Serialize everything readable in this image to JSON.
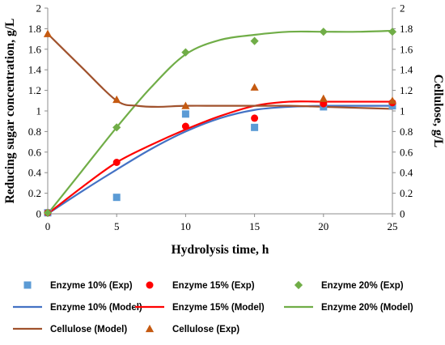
{
  "chart_data": {
    "type": "scatter",
    "xlabel": "Hydrolysis time, h",
    "ylabel_left": "Reducing sugar concentration, g/L",
    "ylabel_right": "Cellulose, g/L",
    "xlim": [
      0,
      25
    ],
    "ylim_left": [
      0,
      2
    ],
    "ylim_right": [
      0,
      2
    ],
    "x_ticks": [
      "0",
      "5",
      "10",
      "15",
      "20",
      "25"
    ],
    "y_ticks_left": [
      "0",
      "0.2",
      "0.4",
      "0.6",
      "0.8",
      "1",
      "1.2",
      "1.4",
      "1.6",
      "1.8",
      "2"
    ],
    "y_ticks_right": [
      "0",
      "0.2",
      "0.4",
      "0.6",
      "0.8",
      "1",
      "1.2",
      "1.4",
      "1.6",
      "1.8",
      "2"
    ],
    "grid": false,
    "legend_position": "bottom",
    "series": [
      {
        "name": "Enzyme 10% (Exp)",
        "kind": "points",
        "marker": "square",
        "color": "#5B9BD5",
        "axis": "left",
        "x": [
          0,
          5,
          10,
          15,
          20,
          25
        ],
        "y": [
          0.01,
          0.16,
          0.97,
          0.84,
          1.04,
          1.05
        ]
      },
      {
        "name": "Enzyme 15% (Exp)",
        "kind": "points",
        "marker": "circle",
        "color": "#FF0000",
        "axis": "left",
        "x": [
          0,
          5,
          10,
          15,
          20,
          25
        ],
        "y": [
          0.01,
          0.5,
          0.85,
          0.93,
          1.07,
          1.08
        ]
      },
      {
        "name": "Enzyme 20% (Exp)",
        "kind": "points",
        "marker": "diamond",
        "color": "#70AD47",
        "axis": "left",
        "x": [
          0,
          5,
          10,
          15,
          20,
          25
        ],
        "y": [
          0.01,
          0.84,
          1.57,
          1.68,
          1.77,
          1.77
        ]
      },
      {
        "name": "Enzyme 10% (Model)",
        "kind": "line",
        "color": "#4472C4",
        "axis": "left",
        "x": [
          0,
          2.5,
          5,
          7.5,
          10,
          12.5,
          15,
          17.5,
          20,
          22.5,
          25
        ],
        "y": [
          0,
          0.22,
          0.43,
          0.63,
          0.8,
          0.93,
          1.01,
          1.04,
          1.05,
          1.05,
          1.05
        ]
      },
      {
        "name": "Enzyme 15% (Model)",
        "kind": "line",
        "color": "#FF0000",
        "axis": "left",
        "x": [
          0,
          2.5,
          5,
          7.5,
          10,
          12.5,
          15,
          17.5,
          20,
          22.5,
          25
        ],
        "y": [
          0,
          0.26,
          0.5,
          0.67,
          0.82,
          0.95,
          1.05,
          1.09,
          1.09,
          1.09,
          1.09
        ]
      },
      {
        "name": "Enzyme 20% (Model)",
        "kind": "line",
        "color": "#70AD47",
        "axis": "left",
        "x": [
          0,
          2.5,
          5,
          7.5,
          10,
          12.5,
          15,
          17.5,
          20,
          22.5,
          25
        ],
        "y": [
          0,
          0.42,
          0.84,
          1.23,
          1.55,
          1.69,
          1.74,
          1.77,
          1.77,
          1.77,
          1.78
        ]
      },
      {
        "name": "Cellulose (Model)",
        "kind": "line",
        "color": "#A0522D",
        "axis": "right",
        "x": [
          0,
          2.5,
          5,
          6.5,
          8,
          10,
          12.5,
          15,
          17.5,
          20,
          22.5,
          25
        ],
        "y": [
          1.75,
          1.42,
          1.1,
          1.05,
          1.04,
          1.05,
          1.05,
          1.05,
          1.05,
          1.04,
          1.03,
          1.02
        ]
      },
      {
        "name": "Cellulose (Exp)",
        "kind": "points",
        "marker": "triangle",
        "color": "#C55A11",
        "axis": "right",
        "x": [
          0,
          5,
          10,
          15,
          20,
          25
        ],
        "y": [
          1.75,
          1.11,
          1.05,
          1.23,
          1.12,
          1.1
        ]
      }
    ]
  },
  "legend": {
    "rows": [
      [
        "Enzyme 10% (Exp)",
        "Enzyme 15% (Exp)",
        "Enzyme 20% (Exp)"
      ],
      [
        "Enzyme 10% (Model)",
        "Enzyme 15% (Model)",
        "Enzyme 20% (Model)"
      ],
      [
        "Cellulose (Model)",
        "Cellulose (Exp)"
      ]
    ]
  }
}
